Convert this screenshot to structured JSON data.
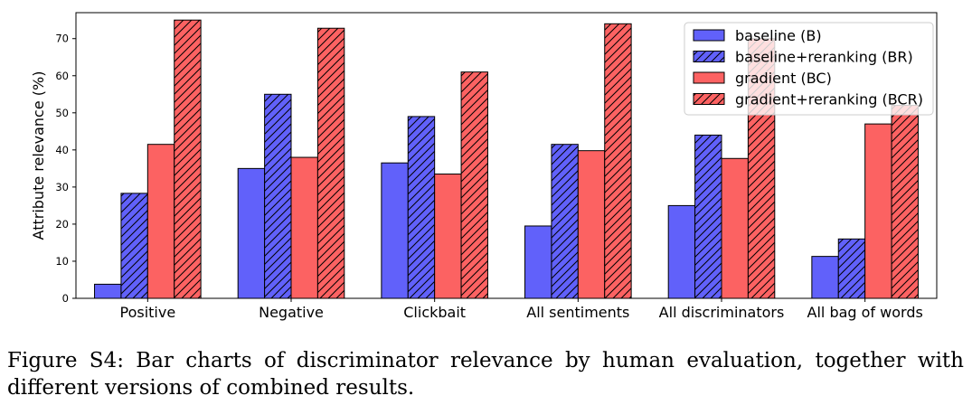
{
  "chart_data": {
    "type": "bar",
    "title": "",
    "xlabel": "",
    "ylabel": "Attribute relevance (%)",
    "ylim": [
      0,
      77
    ],
    "yticks": [
      0,
      10,
      20,
      30,
      40,
      50,
      60,
      70
    ],
    "grid": false,
    "legend_position": "top-right",
    "categories": [
      "Positive",
      "Negative",
      "Clickbait",
      "All sentiments",
      "All discriminators",
      "All bag of words"
    ],
    "series": [
      {
        "name": "baseline (B)",
        "color": "#6161fa",
        "hatched": false,
        "values": [
          3.8,
          35.0,
          36.5,
          19.5,
          25.0,
          11.3
        ]
      },
      {
        "name": "baseline+reranking (BR)",
        "color": "#6161fa",
        "hatched": true,
        "values": [
          28.3,
          55.0,
          49.0,
          41.5,
          44.0,
          16.0
        ]
      },
      {
        "name": "gradient (BC)",
        "color": "#fc6262",
        "hatched": false,
        "values": [
          41.5,
          38.0,
          33.5,
          39.8,
          37.7,
          47.0
        ]
      },
      {
        "name": "gradient+reranking (BCR)",
        "color": "#fc6262",
        "hatched": true,
        "values": [
          75.0,
          72.8,
          61.0,
          74.0,
          70.0,
          52.0
        ]
      }
    ]
  },
  "caption": "Figure S4: Bar charts of discriminator relevance by human evaluation, together with different versions of combined results."
}
